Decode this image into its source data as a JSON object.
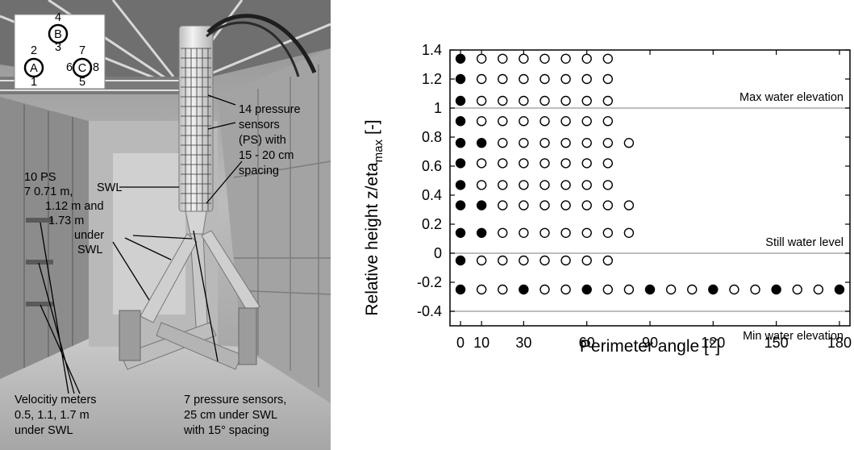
{
  "photo": {
    "inset": {
      "cylinders": [
        {
          "label": "B",
          "ports": [
            "4",
            "3"
          ]
        },
        {
          "label": "A",
          "ports": [
            "2",
            "1"
          ]
        },
        {
          "label": "C",
          "ports": [
            "7",
            "6",
            "8",
            "5"
          ]
        }
      ]
    },
    "annotations": {
      "pressure_sensors": [
        "14 pressure",
        "sensors",
        "(PS) with",
        "15 - 20 cm",
        "spacing"
      ],
      "swl": "SWL",
      "ps_10": [
        "10 PS",
        "7 0.71 m,",
        "1.12 m and",
        "1.73 m",
        "under",
        "SWL"
      ],
      "velocity": [
        "Velocitiy meters",
        "0.5, 1.1, 1.7 m",
        "under SWL"
      ],
      "pressure_7": [
        "7 pressure sensors,",
        "25 cm under SWL",
        "with 15° spacing"
      ]
    }
  },
  "chart_data": {
    "type": "scatter",
    "xlabel": "Perimeter angle [°]",
    "ylabel_main": "Relative height z/eta",
    "ylabel_sub": "max",
    "ylabel_suffix": "[-]",
    "xlim": [
      -5,
      185
    ],
    "ylim": [
      -0.5,
      1.4
    ],
    "x_ticks": [
      0,
      10,
      30,
      60,
      90,
      120,
      150,
      180
    ],
    "x_tick_labels": [
      "0",
      "10",
      "30",
      "60",
      "90",
      "120",
      "150",
      "180"
    ],
    "y_ticks": [
      1.4,
      1.2,
      1,
      0.8,
      0.6,
      0.4,
      0.2,
      0,
      -0.2,
      -0.4
    ],
    "y_tick_labels": [
      "1.4",
      "1.2",
      "1",
      "0.8",
      "0.6",
      "0.4",
      "0.2",
      "0",
      "-0.2",
      "-0.4"
    ],
    "reference_lines": [
      {
        "y": 1,
        "label": "Max water elevation"
      },
      {
        "y": 0,
        "label": "Still water level"
      },
      {
        "y": -0.4,
        "label": "Min water elevation"
      }
    ],
    "rows": [
      {
        "y": 1.34,
        "filled": [
          0
        ],
        "open": [
          10,
          20,
          30,
          40,
          50,
          60,
          70
        ]
      },
      {
        "y": 1.2,
        "filled": [
          0
        ],
        "open": [
          10,
          20,
          30,
          40,
          50,
          60,
          70
        ]
      },
      {
        "y": 1.05,
        "filled": [
          0
        ],
        "open": [
          10,
          20,
          30,
          40,
          50,
          60,
          70
        ]
      },
      {
        "y": 0.91,
        "filled": [
          0
        ],
        "open": [
          10,
          20,
          30,
          40,
          50,
          60,
          70
        ]
      },
      {
        "y": 0.76,
        "filled": [
          0,
          10
        ],
        "open": [
          20,
          30,
          40,
          50,
          60,
          70,
          80
        ]
      },
      {
        "y": 0.62,
        "filled": [
          0
        ],
        "open": [
          10,
          20,
          30,
          40,
          50,
          60,
          70
        ]
      },
      {
        "y": 0.47,
        "filled": [
          0
        ],
        "open": [
          10,
          20,
          30,
          40,
          50,
          60,
          70
        ]
      },
      {
        "y": 0.33,
        "filled": [
          0,
          10
        ],
        "open": [
          20,
          30,
          40,
          50,
          60,
          70,
          80
        ]
      },
      {
        "y": 0.14,
        "filled": [
          0,
          10
        ],
        "open": [
          20,
          30,
          40,
          50,
          60,
          70,
          80
        ]
      },
      {
        "y": -0.05,
        "filled": [
          0
        ],
        "open": [
          10,
          20,
          30,
          40,
          50,
          60,
          70
        ]
      },
      {
        "y": -0.25,
        "filled": [
          0,
          30,
          60,
          90,
          120,
          150,
          180
        ],
        "open": [
          10,
          20,
          40,
          50,
          70,
          80,
          100,
          110,
          130,
          140,
          160,
          170
        ]
      }
    ]
  }
}
